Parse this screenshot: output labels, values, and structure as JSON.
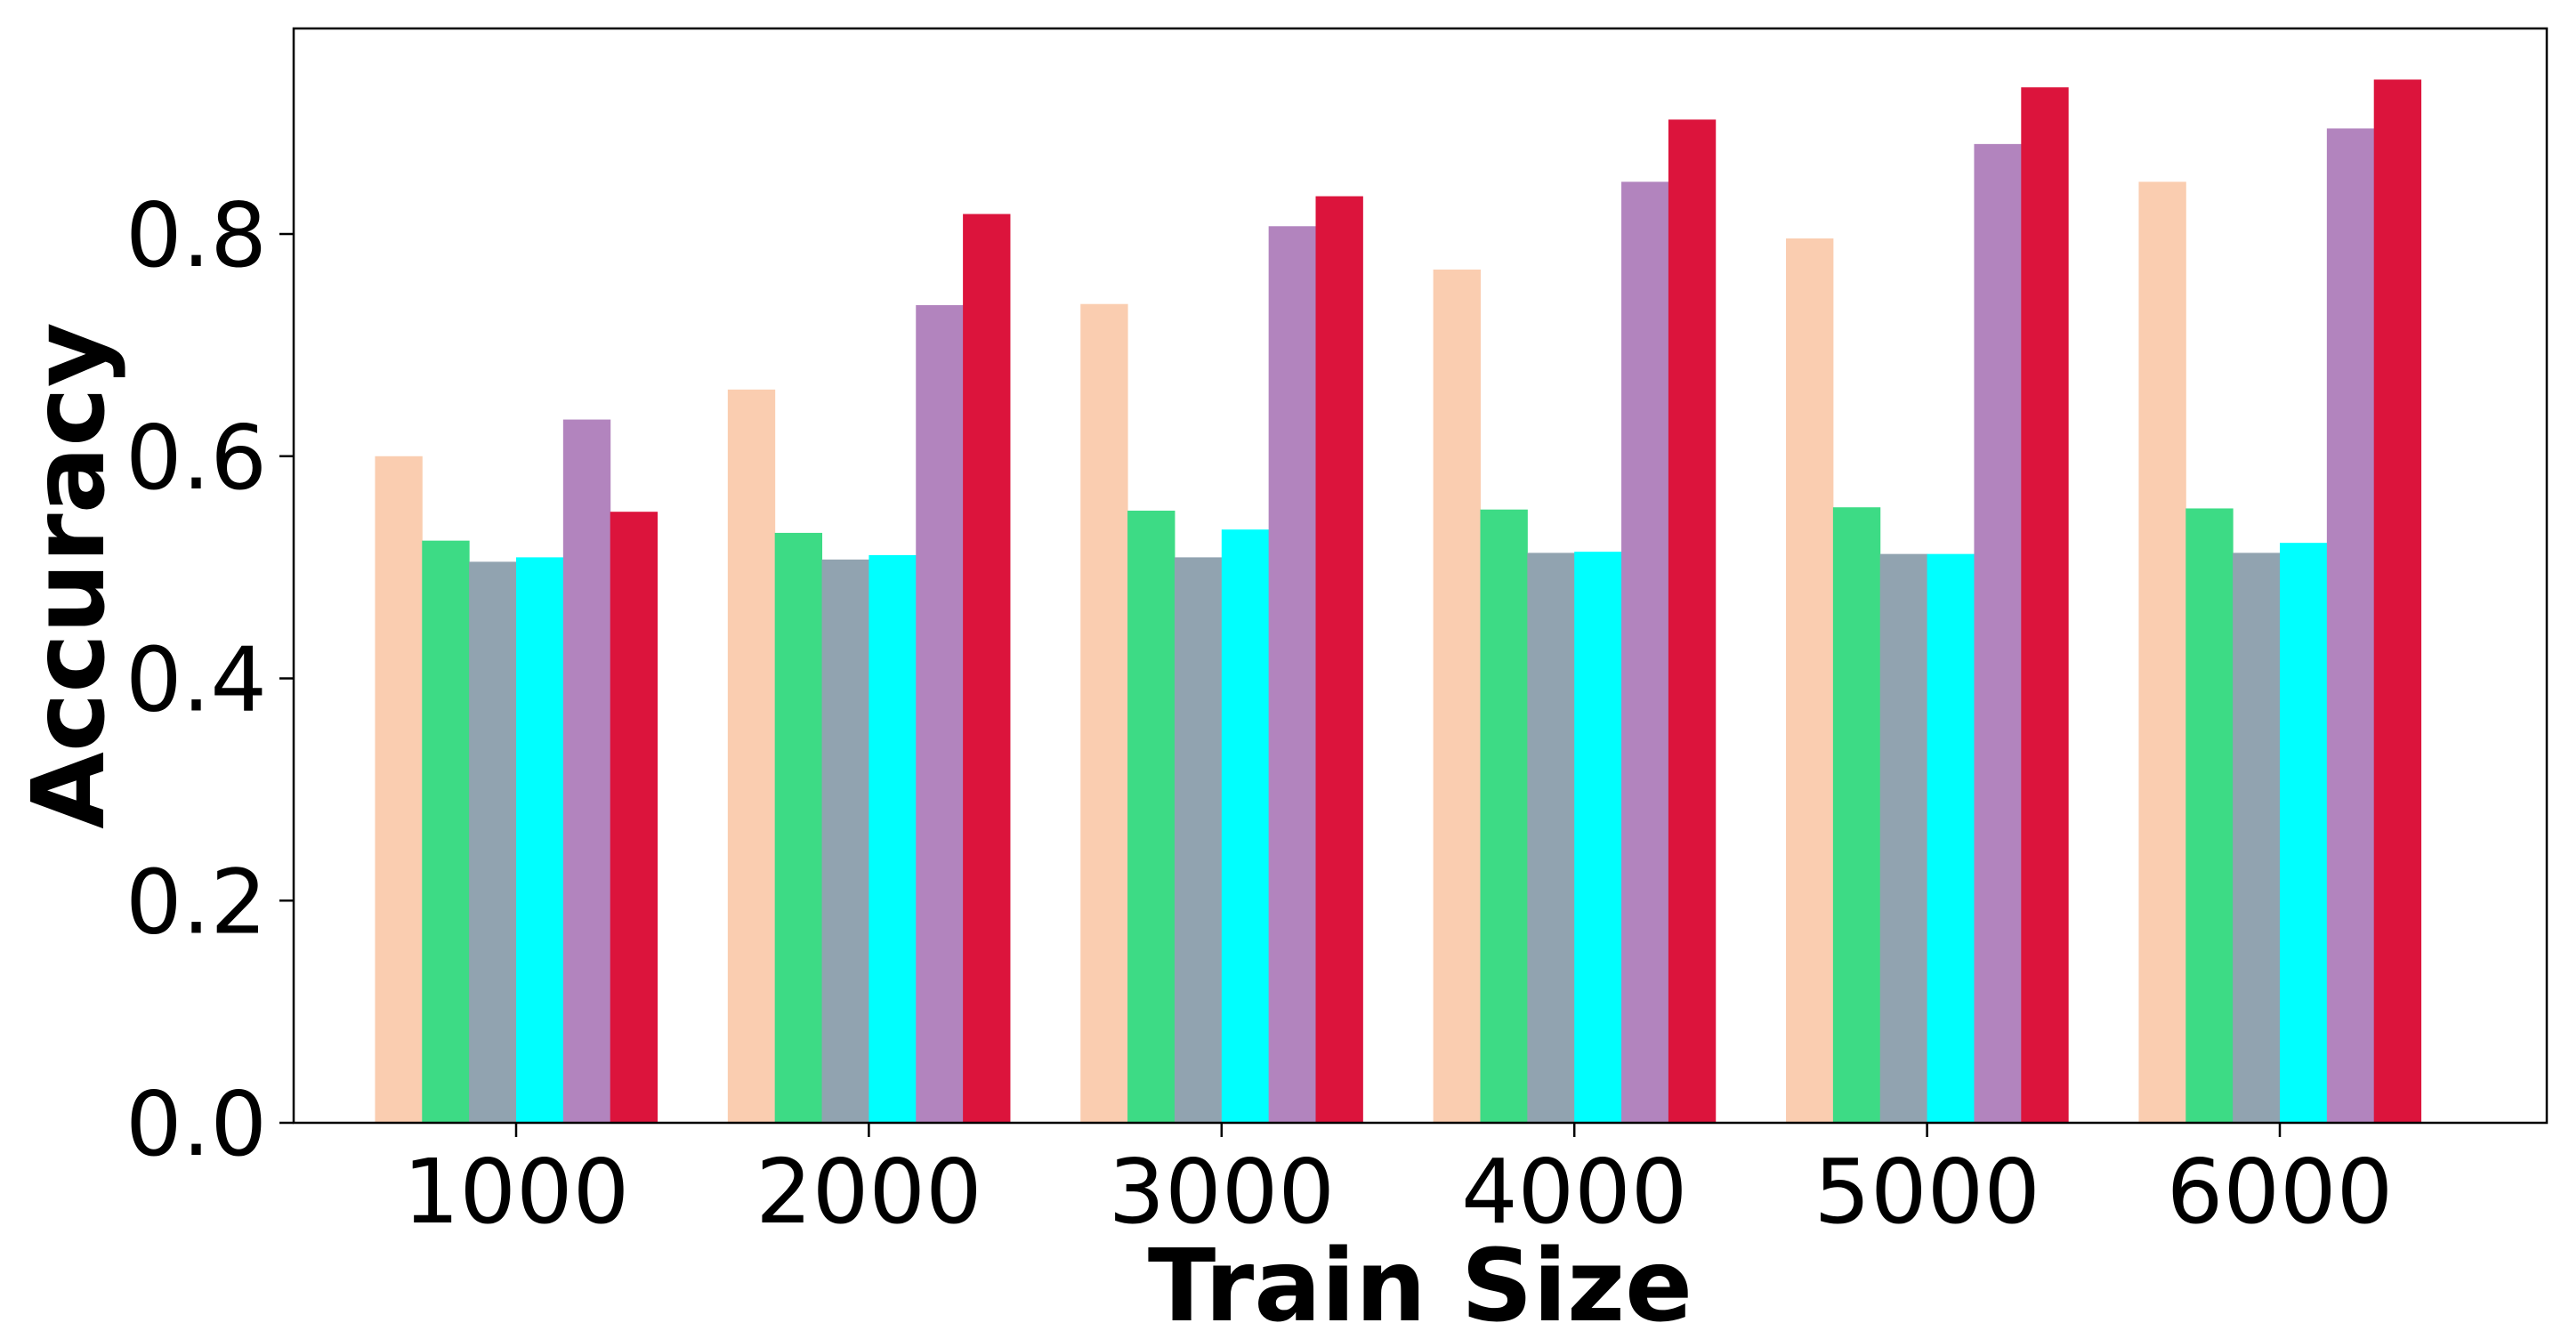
{
  "chart_data": {
    "type": "bar",
    "title": "",
    "xlabel": "Train Size",
    "ylabel": "Accuracy",
    "categories": [
      "1000",
      "2000",
      "3000",
      "4000",
      "5000",
      "6000"
    ],
    "ylim": [
      0,
      0.985
    ],
    "yticks": [
      "0.0",
      "0.2",
      "0.4",
      "0.6",
      "0.8"
    ],
    "ytick_values": [
      0.0,
      0.2,
      0.4,
      0.6,
      0.8
    ],
    "grid": false,
    "legend": "none",
    "series": [
      {
        "color": "#FACDB0",
        "values": [
          0.6,
          0.66,
          0.737,
          0.768,
          0.796,
          0.847
        ]
      },
      {
        "color": "#3DDB85",
        "values": [
          0.524,
          0.531,
          0.551,
          0.552,
          0.554,
          0.553
        ]
      },
      {
        "color": "#91A3B0",
        "values": [
          0.505,
          0.507,
          0.509,
          0.513,
          0.512,
          0.513
        ]
      },
      {
        "color": "#00FFFF",
        "values": [
          0.509,
          0.511,
          0.534,
          0.514,
          0.512,
          0.522
        ]
      },
      {
        "color": "#B284BE",
        "values": [
          0.633,
          0.736,
          0.807,
          0.847,
          0.881,
          0.895
        ]
      },
      {
        "color": "#DC143C",
        "values": [
          0.55,
          0.818,
          0.834,
          0.903,
          0.932,
          0.939
        ]
      }
    ]
  }
}
